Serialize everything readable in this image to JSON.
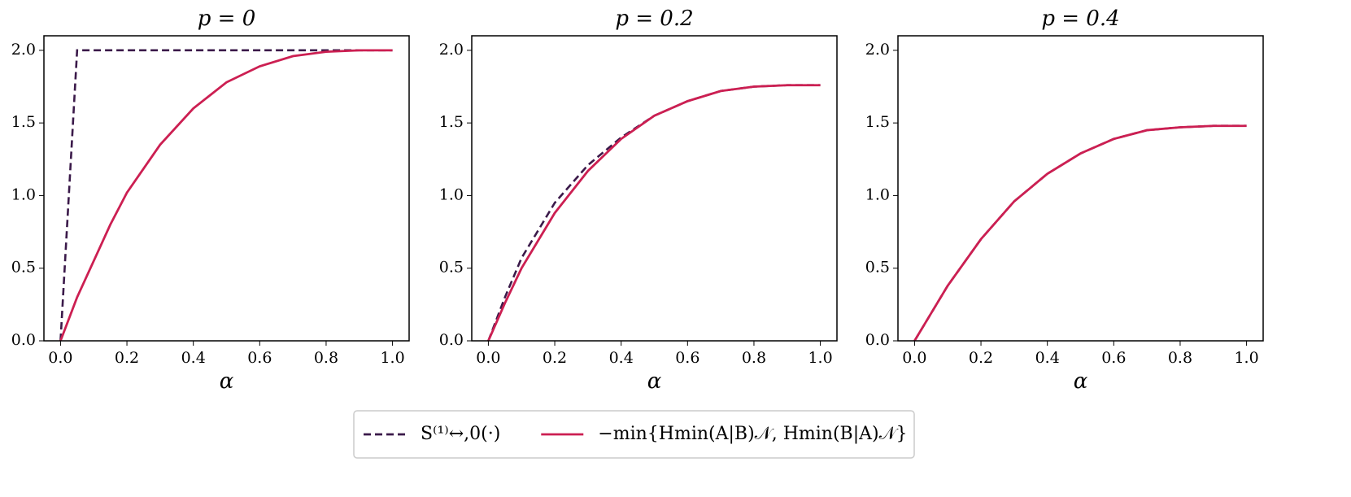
{
  "chart_data": [
    {
      "type": "line",
      "title": "p = 0",
      "x_label": "α",
      "legend": "below",
      "xlim": [
        -0.05,
        1.05
      ],
      "ylim": [
        0,
        2.1
      ],
      "xticks": [
        {
          "value": 0,
          "label": "0.0"
        },
        0.2,
        0.4,
        0.6,
        0.8,
        {
          "value": 1,
          "label": "1.0"
        }
      ],
      "yticks": [
        {
          "value": 0,
          "label": "0.0"
        },
        0.5,
        {
          "value": 1,
          "label": "1.0"
        },
        1.5,
        {
          "value": 2,
          "label": "2.0"
        }
      ],
      "series": [
        {
          "name": "S⁽¹⁾↔,0(·)",
          "color": "#3b1a4a",
          "dash": true,
          "x": [
            0,
            0.05,
            1
          ],
          "values": [
            0,
            2,
            2
          ]
        },
        {
          "name": "−min{Hmin(A|B)𝒩,  Hmin(B|A)𝒩}",
          "color": "#cc1f52",
          "dash": false,
          "x": [
            0,
            0.05,
            0.1,
            0.15,
            0.2,
            0.3,
            0.4,
            0.5,
            0.6,
            0.7,
            0.8,
            0.9,
            1
          ],
          "values": [
            0,
            0.3,
            0.55,
            0.8,
            1.02,
            1.35,
            1.6,
            1.78,
            1.89,
            1.96,
            1.99,
            2,
            2
          ]
        }
      ]
    },
    {
      "type": "line",
      "title": "p = 0.2",
      "x_label": "α",
      "xlim": [
        -0.05,
        1.05
      ],
      "ylim": [
        0,
        2.1
      ],
      "xticks": [
        {
          "value": 0,
          "label": "0.0"
        },
        0.2,
        0.4,
        0.6,
        0.8,
        {
          "value": 1,
          "label": "1.0"
        }
      ],
      "yticks": [
        {
          "value": 0,
          "label": "0.0"
        },
        0.5,
        {
          "value": 1,
          "label": "1.0"
        },
        1.5,
        {
          "value": 2,
          "label": "2.0"
        }
      ],
      "series": [
        {
          "color": "#3b1a4a",
          "dash": true,
          "x": [
            0,
            0.05,
            0.1,
            0.2,
            0.3,
            0.4,
            0.5,
            0.6,
            0.7,
            0.8,
            0.9,
            1
          ],
          "values": [
            0,
            0.3,
            0.57,
            0.95,
            1.21,
            1.4,
            1.55,
            1.65,
            1.72,
            1.75,
            1.76,
            1.76
          ]
        },
        {
          "color": "#cc1f52",
          "dash": false,
          "x": [
            0,
            0.05,
            0.1,
            0.2,
            0.3,
            0.4,
            0.5,
            0.6,
            0.7,
            0.8,
            0.9,
            1
          ],
          "values": [
            0,
            0.26,
            0.5,
            0.88,
            1.17,
            1.39,
            1.55,
            1.65,
            1.72,
            1.75,
            1.76,
            1.76
          ]
        }
      ]
    },
    {
      "type": "line",
      "title": "p = 0.4",
      "x_label": "α",
      "xlim": [
        -0.05,
        1.05
      ],
      "ylim": [
        0,
        2.1
      ],
      "xticks": [
        {
          "value": 0,
          "label": "0.0"
        },
        0.2,
        0.4,
        0.6,
        0.8,
        {
          "value": 1,
          "label": "1.0"
        }
      ],
      "yticks": [
        {
          "value": 0,
          "label": "0.0"
        },
        0.5,
        {
          "value": 1,
          "label": "1.0"
        },
        1.5,
        {
          "value": 2,
          "label": "2.0"
        }
      ],
      "series": [
        {
          "color": "#3b1a4a",
          "dash": true,
          "x": [
            0,
            0.1,
            0.2,
            0.3,
            0.4,
            0.5,
            0.6,
            0.7,
            0.8,
            0.9,
            1
          ],
          "values": [
            0,
            0.38,
            0.7,
            0.96,
            1.15,
            1.29,
            1.39,
            1.45,
            1.47,
            1.48,
            1.48
          ]
        },
        {
          "color": "#cc1f52",
          "dash": false,
          "x": [
            0,
            0.1,
            0.2,
            0.3,
            0.4,
            0.5,
            0.6,
            0.7,
            0.8,
            0.9,
            1
          ],
          "values": [
            0,
            0.38,
            0.7,
            0.96,
            1.15,
            1.29,
            1.39,
            1.45,
            1.47,
            1.48,
            1.48
          ]
        }
      ]
    }
  ]
}
